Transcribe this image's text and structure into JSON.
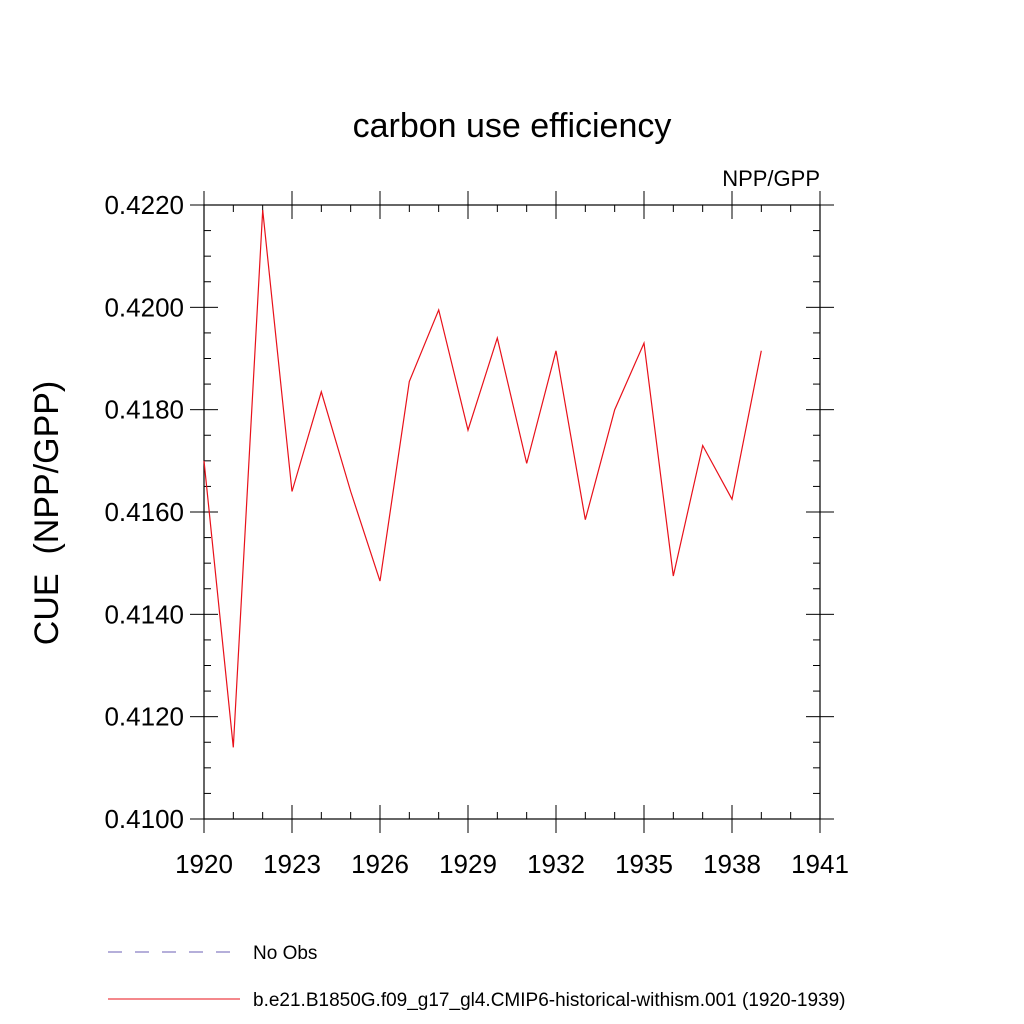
{
  "chart_data": {
    "type": "line",
    "title": "carbon use efficiency",
    "subtitle": "NPP/GPP",
    "xlabel": "",
    "ylabel": "CUE  (NPP/GPP)",
    "xlim": [
      1920,
      1941
    ],
    "ylim": [
      0.41,
      0.422
    ],
    "xticks": [
      1920,
      1923,
      1926,
      1929,
      1932,
      1935,
      1938,
      1941
    ],
    "xtick_labels": [
      "1920",
      "1923",
      "1926",
      "1929",
      "1932",
      "1935",
      "1938",
      "1941"
    ],
    "yticks": [
      0.41,
      0.412,
      0.414,
      0.416,
      0.418,
      0.42,
      0.422
    ],
    "ytick_labels": [
      "0.4100",
      "0.4120",
      "0.4140",
      "0.4160",
      "0.4180",
      "0.4200",
      "0.4220"
    ],
    "grid": false,
    "legend_position": "bottom",
    "series": [
      {
        "name": "b.e21.B1850G.f09_g17_gl4.CMIP6-historical-withism.001 (1920-1939)",
        "color": "#e8111a",
        "style": "solid",
        "x": [
          1920,
          1921,
          1922,
          1923,
          1924,
          1925,
          1926,
          1927,
          1928,
          1929,
          1930,
          1931,
          1932,
          1933,
          1934,
          1935,
          1936,
          1937,
          1938,
          1939
        ],
        "y": [
          0.417,
          0.4114,
          0.4219,
          0.4164,
          0.41835,
          0.4164,
          0.41465,
          0.41855,
          0.41995,
          0.4176,
          0.4194,
          0.41695,
          0.41915,
          0.41585,
          0.418,
          0.4193,
          0.41475,
          0.4173,
          0.41625,
          0.41915
        ]
      }
    ],
    "legend": [
      {
        "label": "No Obs",
        "color": "#6b5fb5",
        "style": "dashed"
      },
      {
        "label": "b.e21.B1850G.f09_g17_gl4.CMIP6-historical-withism.001 (1920-1939)",
        "color": "#e8111a",
        "style": "solid"
      }
    ]
  }
}
